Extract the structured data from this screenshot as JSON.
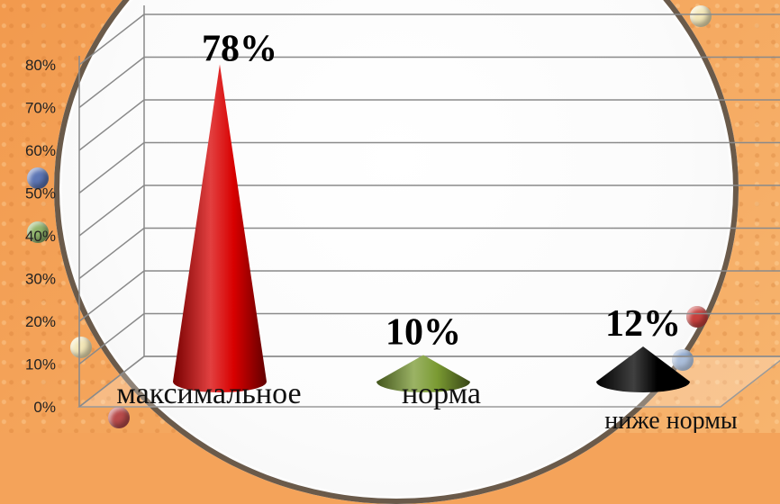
{
  "chart_data": {
    "type": "bar",
    "categories": [
      "максимальное",
      "норма",
      "ниже нормы"
    ],
    "values": [
      78,
      10,
      12
    ],
    "data_labels": [
      "78%",
      "10%",
      "12%"
    ],
    "colors": [
      "#d80000",
      "#7a9a32",
      "#000000"
    ],
    "title": "",
    "xlabel": "",
    "ylabel": "",
    "ylim": [
      0,
      80
    ],
    "yticks": [
      "0%",
      "10%",
      "20%",
      "30%",
      "40%",
      "50%",
      "60%",
      "70%",
      "80%"
    ],
    "grid": true,
    "legend": "none",
    "shape": "cone"
  }
}
